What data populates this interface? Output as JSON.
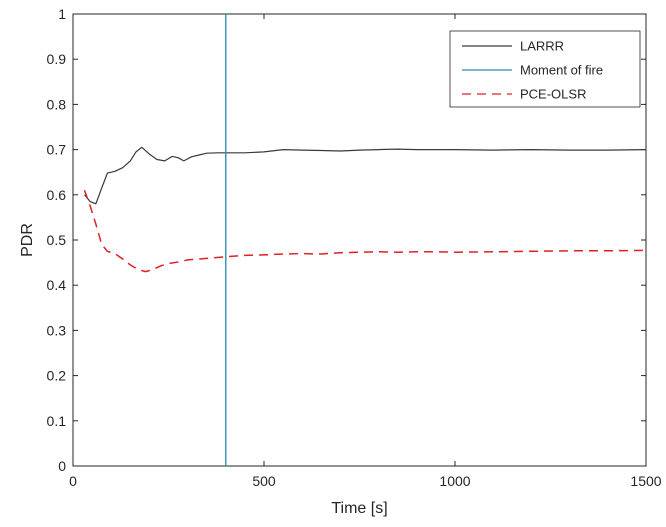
{
  "chart_data": {
    "type": "line",
    "title": "",
    "xlabel": "Time [s]",
    "ylabel": "PDR",
    "xlim": [
      0,
      1500
    ],
    "ylim": [
      0,
      1
    ],
    "xticks": [
      0,
      500,
      1000,
      1500
    ],
    "xtick_labels": [
      "0",
      "500",
      "1000",
      "1500"
    ],
    "yticks": [
      0,
      0.1,
      0.2,
      0.3,
      0.4,
      0.5,
      0.6,
      0.7,
      0.8,
      0.9,
      1
    ],
    "ytick_labels": [
      "0",
      "0.1",
      "0.2",
      "0.3",
      "0.4",
      "0.5",
      "0.6",
      "0.7",
      "0.8",
      "0.9",
      "1"
    ],
    "grid": false,
    "legend_position": "top-right",
    "series": [
      {
        "name": "LARRR",
        "color": "#3a3a3a",
        "style": "solid",
        "x": [
          30,
          45,
          60,
          75,
          90,
          110,
          130,
          150,
          165,
          180,
          200,
          220,
          240,
          260,
          275,
          290,
          310,
          330,
          350,
          380,
          400,
          450,
          500,
          550,
          600,
          650,
          700,
          750,
          800,
          850,
          900,
          950,
          1000,
          1100,
          1200,
          1300,
          1400,
          1500
        ],
        "y": [
          0.6,
          0.585,
          0.58,
          0.615,
          0.648,
          0.652,
          0.66,
          0.675,
          0.695,
          0.705,
          0.69,
          0.678,
          0.675,
          0.685,
          0.682,
          0.675,
          0.684,
          0.688,
          0.692,
          0.693,
          0.693,
          0.693,
          0.695,
          0.7,
          0.699,
          0.698,
          0.697,
          0.699,
          0.7,
          0.701,
          0.7,
          0.7,
          0.7,
          0.699,
          0.7,
          0.699,
          0.699,
          0.7
        ]
      },
      {
        "name": "Moment of fire",
        "color": "#2e8fb5",
        "style": "vertical",
        "x": [
          400,
          400
        ],
        "y": [
          0,
          1
        ]
      },
      {
        "name": "PCE-OLSR",
        "color": "#e02020",
        "style": "dashed",
        "x": [
          30,
          45,
          60,
          75,
          90,
          110,
          130,
          150,
          170,
          190,
          210,
          230,
          250,
          280,
          300,
          330,
          360,
          400,
          450,
          500,
          550,
          600,
          650,
          700,
          750,
          800,
          850,
          900,
          950,
          1000,
          1100,
          1200,
          1300,
          1400,
          1500
        ],
        "y": [
          0.61,
          0.575,
          0.535,
          0.49,
          0.475,
          0.47,
          0.458,
          0.445,
          0.435,
          0.43,
          0.435,
          0.443,
          0.448,
          0.452,
          0.456,
          0.458,
          0.46,
          0.463,
          0.466,
          0.467,
          0.469,
          0.47,
          0.469,
          0.472,
          0.473,
          0.474,
          0.473,
          0.474,
          0.474,
          0.473,
          0.474,
          0.475,
          0.476,
          0.476,
          0.477
        ]
      }
    ]
  }
}
